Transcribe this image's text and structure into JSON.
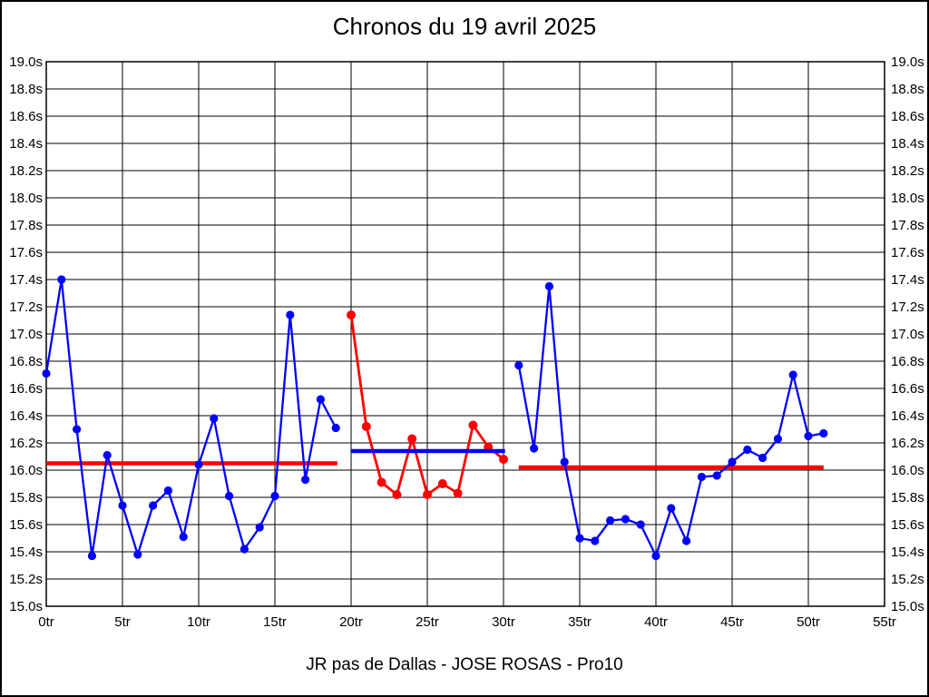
{
  "page": {
    "title": "Chronos du 19 avril 2025",
    "footer": "JR pas de Dallas - JOSE ROSAS - Pro10"
  },
  "chart_data": {
    "type": "line",
    "title": "Chronos du 19 avril 2025",
    "subtitle": "JR pas de Dallas - JOSE ROSAS - Pro10",
    "xlabel": "",
    "ylabel": "",
    "x_axis": {
      "unit": "tr",
      "min": 0,
      "max": 55,
      "tick_step": 5,
      "tick_labels": [
        "0tr",
        "5tr",
        "10tr",
        "15tr",
        "20tr",
        "25tr",
        "30tr",
        "35tr",
        "40tr",
        "45tr",
        "50tr",
        "55tr"
      ]
    },
    "y_axis": {
      "unit": "s",
      "min": 15.0,
      "max": 19.0,
      "tick_step": 0.2,
      "tick_labels": [
        "19.0s",
        "18.8s",
        "18.6s",
        "18.4s",
        "18.2s",
        "18.0s",
        "17.8s",
        "17.6s",
        "17.4s",
        "17.2s",
        "17.0s",
        "16.8s",
        "16.6s",
        "16.4s",
        "16.2s",
        "16.0s",
        "15.8s",
        "15.6s",
        "15.4s",
        "15.2s",
        "15.0s"
      ],
      "labels_on_both_sides": true
    },
    "grid": true,
    "legend": "none",
    "colors": {
      "blue_series": "#0000ff",
      "red_series": "#ff0000",
      "grid": "#000000",
      "background": "#ffffff",
      "text": "#000000"
    },
    "series": [
      {
        "name": "stint-1-lap-times",
        "color": "#0000ff",
        "start_lap": 0,
        "values": [
          16.71,
          17.4,
          16.3,
          15.37,
          16.11,
          15.74,
          15.38,
          15.74,
          15.85,
          15.51,
          16.04,
          16.38,
          15.81,
          15.42,
          15.58,
          15.81,
          17.14,
          15.93,
          16.52,
          16.31
        ]
      },
      {
        "name": "stint-2-lap-times",
        "color": "#ff0000",
        "start_lap": 20,
        "values": [
          17.14,
          16.32,
          15.91,
          15.82,
          16.23,
          15.82,
          15.9,
          15.83,
          16.33,
          16.17,
          16.08
        ]
      },
      {
        "name": "stint-3-lap-times",
        "color": "#0000ff",
        "start_lap": 31,
        "values": [
          16.77,
          16.16,
          17.35,
          16.06,
          15.5,
          15.48,
          15.63,
          15.64,
          15.6,
          15.37,
          15.72,
          15.48,
          15.95,
          15.96,
          16.06,
          16.15,
          16.09,
          16.23,
          16.7,
          16.25,
          16.27
        ]
      }
    ],
    "mean_lines": [
      {
        "name": "stint-1-mean",
        "color": "#ff0000",
        "value": 16.05,
        "from_lap": 0,
        "to_lap": 19.1
      },
      {
        "name": "stint-2-mean",
        "color": "#0000ff",
        "value": 16.14,
        "from_lap": 20,
        "to_lap": 30.1
      },
      {
        "name": "stint-3-mean",
        "color": "#ff0000",
        "value": 16.02,
        "from_lap": 31,
        "to_lap": 51
      }
    ]
  }
}
